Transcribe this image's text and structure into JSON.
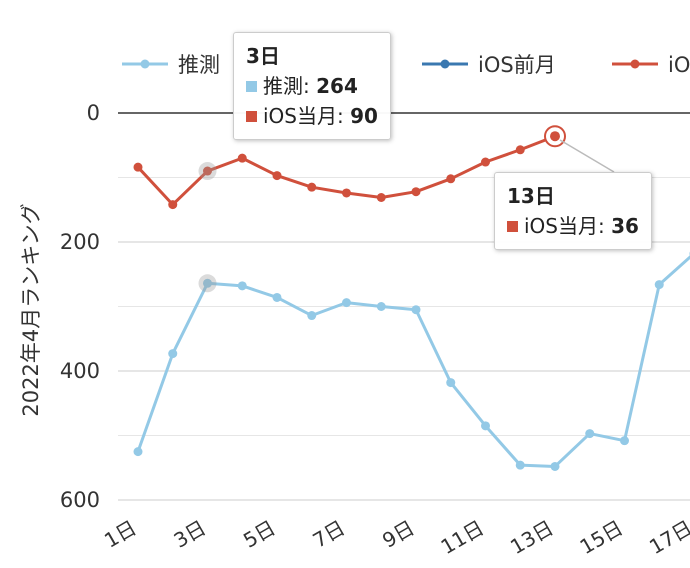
{
  "chart_data": {
    "type": "line",
    "ylabel": "2022年4月ランキング",
    "ylim": [
      0,
      600
    ],
    "y_reversed": true,
    "y_ticks": [
      "0",
      "200",
      "400",
      "600"
    ],
    "x": [
      1,
      2,
      3,
      4,
      5,
      6,
      7,
      8,
      9,
      10,
      11,
      12,
      13,
      14,
      15,
      16,
      17
    ],
    "x_tick_labels": [
      "1日",
      "3日",
      "5日",
      "7日",
      "9日",
      "11日",
      "13日",
      "15日",
      "17日"
    ],
    "x_tick_values": [
      1,
      3,
      5,
      7,
      9,
      11,
      13,
      15,
      17
    ],
    "legend": [
      "推測",
      "iOS前月",
      "iO"
    ],
    "legend_colors": [
      "#93c9e6",
      "#3a78b0",
      "#d0503c"
    ],
    "grid": true,
    "series": [
      {
        "name": "推測",
        "color": "#93c9e6",
        "values": [
          525,
          373,
          264,
          268,
          286,
          314,
          294,
          300,
          305,
          418,
          485,
          546,
          548,
          497,
          508,
          266,
          218
        ]
      },
      {
        "name": "iOS当月",
        "color": "#d0503c",
        "values": [
          84,
          142,
          90,
          70,
          97,
          115,
          124,
          131,
          122,
          102,
          76,
          57,
          36,
          null,
          null,
          null,
          null
        ]
      }
    ]
  },
  "tooltip_left": {
    "title": "3日",
    "rows": [
      {
        "label": "推測",
        "value": "264",
        "color": "#93c9e6"
      },
      {
        "label": "iOS当月",
        "value": "90",
        "color": "#d0503c"
      }
    ]
  },
  "tooltip_right": {
    "title": "13日",
    "rows": [
      {
        "label": "iOS当月",
        "value": "36",
        "color": "#d0503c"
      }
    ]
  }
}
